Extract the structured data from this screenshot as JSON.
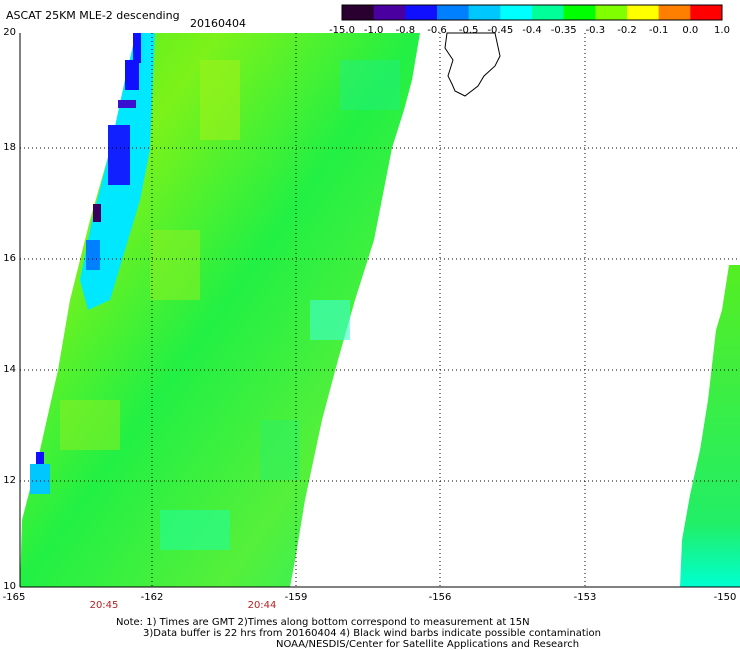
{
  "header": {
    "title": "ASCAT 25KM MLE-2 descending",
    "date": "20160404"
  },
  "colorbar": {
    "labels": [
      "-15.0",
      "-1.0",
      "-0.8",
      "-0.6",
      "-0.5",
      "-0.45",
      "-0.4",
      "-0.35",
      "-0.3",
      "-0.2",
      "-0.1",
      "0.0",
      "1.0"
    ],
    "colors": [
      "#2a0030",
      "#4a00a0",
      "#1010ff",
      "#0080ff",
      "#00c8ff",
      "#00ffff",
      "#00ff99",
      "#00ff00",
      "#80ff00",
      "#ffff00",
      "#ff8000",
      "#ff0000"
    ]
  },
  "axes": {
    "lat_labels": [
      "20",
      "18",
      "16",
      "14",
      "12",
      "10"
    ],
    "lon_labels": [
      "-165",
      "-162",
      "-159",
      "-156",
      "-153",
      "-150"
    ],
    "lat_range": [
      10,
      20
    ],
    "lon_range": [
      -165,
      -150
    ]
  },
  "times": [
    "20:45",
    "20:44"
  ],
  "notes": [
    "Note: 1) Times are GMT 2)Times along bottom correspond to measurement at 15N",
    "3)Data buffer is 22 hrs from 20160404 4) Black wind barbs indicate possible contamination",
    "NOAA/NESDIS/Center for Satellite Applications and Research"
  ]
}
